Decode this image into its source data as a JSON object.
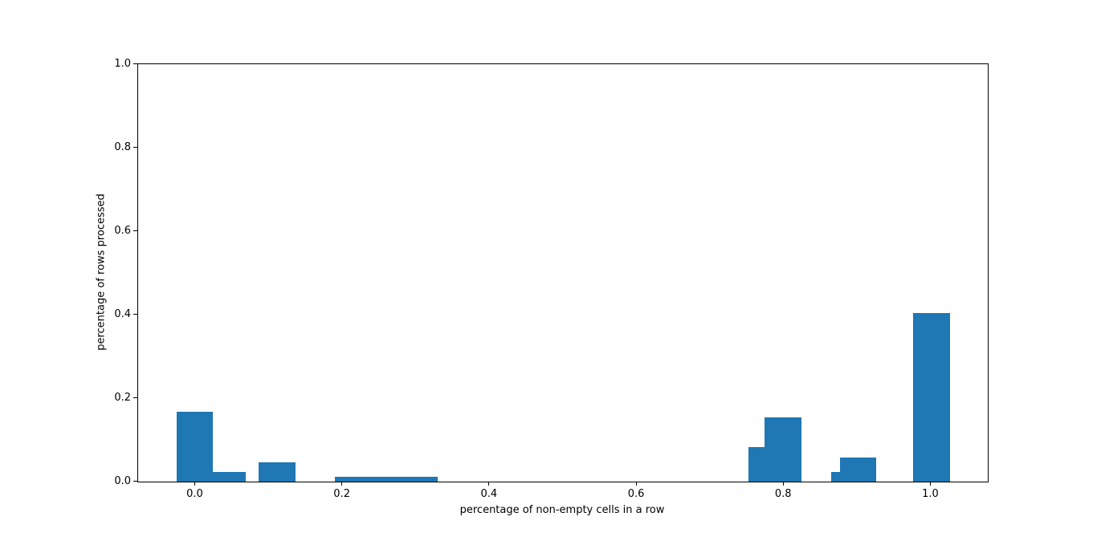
{
  "figure": {
    "background_color": "#ffffff",
    "axis_color": "#000000",
    "text_color": "#000000"
  },
  "chart_data": {
    "type": "bar",
    "subtype": "histogram",
    "title": "",
    "xlabel": "percentage of non-empty cells in a row",
    "ylabel": "percentage of rows processed",
    "xlim": [
      -0.078,
      1.077
    ],
    "ylim": [
      0,
      1
    ],
    "grid": false,
    "legend_position": "none",
    "bar_color": "#1f77b4",
    "x_ticks": [
      {
        "value": 0.0,
        "label": "0.0"
      },
      {
        "value": 0.2,
        "label": "0.2"
      },
      {
        "value": 0.4,
        "label": "0.4"
      },
      {
        "value": 0.6,
        "label": "0.6"
      },
      {
        "value": 0.8,
        "label": "0.8"
      },
      {
        "value": 1.0,
        "label": "1.0"
      }
    ],
    "y_ticks": [
      {
        "value": 0.0,
        "label": "0.0"
      },
      {
        "value": 0.2,
        "label": "0.2"
      },
      {
        "value": 0.4,
        "label": "0.4"
      },
      {
        "value": 0.6,
        "label": "0.6"
      },
      {
        "value": 0.8,
        "label": "0.8"
      },
      {
        "value": 1.0,
        "label": "1.0"
      }
    ],
    "bars": [
      {
        "x0": -0.026,
        "x1": 0.024,
        "height": 0.168
      },
      {
        "x0": 0.024,
        "x1": 0.068,
        "height": 0.023
      },
      {
        "x0": 0.086,
        "x1": 0.136,
        "height": 0.047
      },
      {
        "x0": 0.19,
        "x1": 0.329,
        "height": 0.012
      },
      {
        "x0": 0.752,
        "x1": 0.774,
        "height": 0.082
      },
      {
        "x0": 0.774,
        "x1": 0.824,
        "height": 0.154
      },
      {
        "x0": 0.864,
        "x1": 0.876,
        "height": 0.023
      },
      {
        "x0": 0.876,
        "x1": 0.925,
        "height": 0.058
      },
      {
        "x0": 0.975,
        "x1": 1.026,
        "height": 0.403
      }
    ]
  }
}
